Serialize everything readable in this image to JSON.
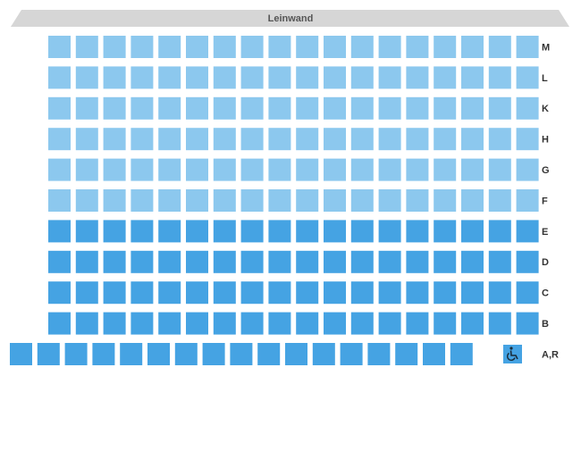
{
  "screen": {
    "label": "Leinwand"
  },
  "rows": [
    {
      "label": "M"
    },
    {
      "label": "L"
    },
    {
      "label": "K"
    },
    {
      "label": "H"
    },
    {
      "label": "G"
    },
    {
      "label": "F"
    },
    {
      "label": "E"
    },
    {
      "label": "D"
    },
    {
      "label": "C"
    },
    {
      "label": "B"
    },
    {
      "label": "A,R"
    }
  ]
}
